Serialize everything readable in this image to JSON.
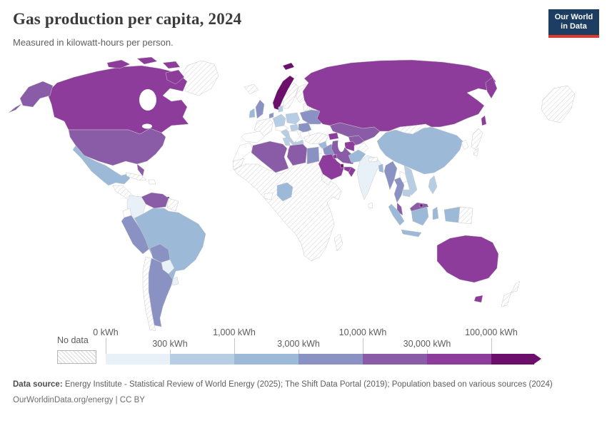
{
  "header": {
    "title": "Gas production per capita, 2024",
    "subtitle": "Measured in kilowatt-hours per person.",
    "logo": {
      "line1": "Our World",
      "line2": "in Data",
      "bg_color": "#1d3d63",
      "stripe_color": "#e2382b"
    }
  },
  "legend": {
    "no_data_label": "No data",
    "boundaries": [
      "0 kWh",
      "300 kWh",
      "1,000 kWh",
      "3,000 kWh",
      "10,000 kWh",
      "30,000 kWh",
      "100,000 kWh"
    ],
    "colors": [
      "#e8f1f7",
      "#b7cde3",
      "#9db9d8",
      "#8a92c3",
      "#8a5ca7",
      "#8d3c9b",
      "#6c0e6b"
    ]
  },
  "footer": {
    "datasource_label": "Data source:",
    "datasource_text": " Energy Institute - Statistical Review of World Energy (2025); The Shift Data Portal (2019); Population based on various sources (2024)",
    "link": "OurWorldinData.org/energy | CC BY"
  },
  "chart_data": {
    "type": "choropleth_map",
    "title": "Gas production per capita, 2024",
    "subtitle": "Measured in kilowatt-hours per person.",
    "unit": "kWh",
    "palette": {
      "b0": "#ffffff",
      "b1": "#e8f1f7",
      "b2": "#b7cde3",
      "b3": "#9db9d8",
      "b4": "#8a92c3",
      "b5": "#8a5ca7",
      "b6": "#8d3c9b",
      "b7": "#6c0e6b",
      "nodata": "pattern"
    },
    "bands": {
      "b0": "0 kWh",
      "b1": "0-300 kWh",
      "b2": "300-1,000 kWh",
      "b3": "1,000-3,000 kWh",
      "b4": "3,000-10,000 kWh",
      "b5": "10,000-30,000 kWh",
      "b6": "30,000-100,000 kWh",
      "b7": "100,000+ kWh",
      "nodata": "No data"
    },
    "countries": {
      "greenland": "nodata",
      "canada": "b6",
      "usa": "b5",
      "mexico": "b3",
      "cuba": "nodata",
      "hispaniola": "b0",
      "central-america": "nodata",
      "trinidad-and-tobago": "b7",
      "venezuela": "b5",
      "colombia": "b1",
      "guyanas": "nodata",
      "ecuador": "b0",
      "peru": "b4",
      "brazil": "b3",
      "bolivia": "b4",
      "paraguay": "b1",
      "uruguay": "b1",
      "argentina": "b4",
      "chile": "nodata",
      "iceland": "nodata",
      "norway": "b7",
      "svalbard": "b7",
      "sweden": "nodata",
      "finland": "nodata",
      "baltic-states": "nodata",
      "belarus": "nodata",
      "united-kingdom": "b4",
      "ireland": "b3",
      "netherlands": "b4",
      "denmark": "b2",
      "germany": "b2",
      "poland": "b2",
      "france": "nodata",
      "spain-portugal": "b0",
      "italy": "b2",
      "alpine-states": "b0",
      "hungary": "b2",
      "balkans": "b0",
      "romania": "b4",
      "bulgaria": "b0",
      "greece": "b2",
      "ukraine": "b4",
      "turkey": "nodata",
      "russia": "b6",
      "kazakhstan": "b5",
      "uzbekistan": "b5",
      "turkmenistan": "b6",
      "azerbaijan": "b6",
      "afghanistan": "nodata",
      "mongolia": "nodata",
      "china": "b3",
      "south-korea": "b0",
      "japan": "nodata",
      "wrapped-alaska": "nodata",
      "syria": "b3",
      "iraq": "b4",
      "iran": "b5",
      "jordan-israel": "b0",
      "saudi-arabia": "b6",
      "kuwait": "b6",
      "qatar": "b7",
      "united-arab-emirates": "b6",
      "oman": "b6",
      "yemen": "nodata",
      "sub-saharan-africa": "nodata",
      "morocco": "b0",
      "western-sahara": "nodata",
      "algeria": "b5",
      "tunisia": "b2",
      "libya": "b5",
      "egypt": "b4",
      "nigeria": "b3",
      "ghana-ivory-coast": "b0",
      "madagascar": "nodata",
      "pakistan": "b3",
      "india": "b1",
      "nepal": "nodata",
      "bangladesh": "b3",
      "sri-lanka": "b0",
      "myanmar": "b4",
      "thailand": "b4",
      "laos": "b0",
      "vietnam": "b2",
      "cambodia": "b2",
      "malaysia": "b5",
      "brunei": "b7",
      "indonesia": "b3",
      "papua-new-guinea": "nodata",
      "philippines": "b2",
      "australia": "b6",
      "new-zealand": "nodata"
    }
  }
}
